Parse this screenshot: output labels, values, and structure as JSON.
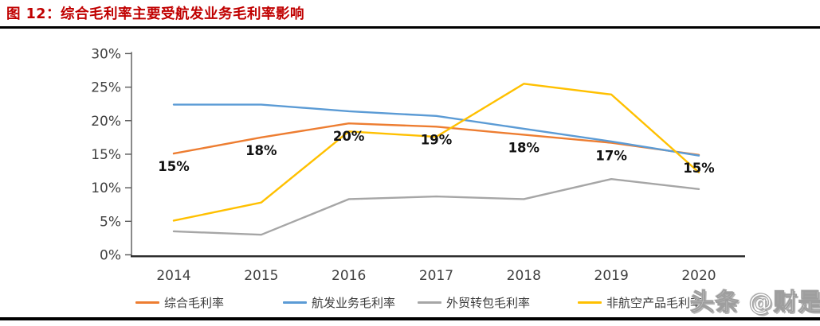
{
  "title": "图 12：综合毛利率主要受航发业务毛利率影响",
  "watermark": "头条 @财是",
  "chart_data": {
    "type": "line",
    "title": "综合毛利率主要受航发业务毛利率影响",
    "categories": [
      "2014",
      "2015",
      "2016",
      "2017",
      "2018",
      "2019",
      "2020"
    ],
    "series": [
      {
        "name": "综合毛利率",
        "color": "#ED7D31",
        "values": [
          15.1,
          17.5,
          19.6,
          19.1,
          17.9,
          16.7,
          14.9
        ],
        "data_labels": [
          "15%",
          "18%",
          "20%",
          "19%",
          "18%",
          "17%",
          "15%"
        ]
      },
      {
        "name": "航发业务毛利率",
        "color": "#5B9BD5",
        "values": [
          22.4,
          22.4,
          21.4,
          20.7,
          18.8,
          16.9,
          14.8
        ]
      },
      {
        "name": "外贸转包毛利率",
        "color": "#A6A6A6",
        "values": [
          3.5,
          3.0,
          8.3,
          8.7,
          8.3,
          11.3,
          9.8
        ]
      },
      {
        "name": "非航空产品毛利率",
        "color": "#FFC000",
        "values": [
          5.1,
          7.8,
          18.4,
          17.6,
          25.5,
          23.9,
          12.3
        ]
      }
    ],
    "xlabel": "",
    "ylabel": "",
    "ylim": [
      0,
      30
    ],
    "yticks": [
      {
        "label": "30%",
        "v": 30
      },
      {
        "label": "25%",
        "v": 25
      },
      {
        "label": "20%",
        "v": 20
      },
      {
        "label": "15%",
        "v": 15
      },
      {
        "label": "10%",
        "v": 10
      },
      {
        "label": "5%",
        "v": 5
      },
      {
        "label": "0%",
        "v": 0
      }
    ],
    "grid": false,
    "legend_position": "bottom"
  }
}
